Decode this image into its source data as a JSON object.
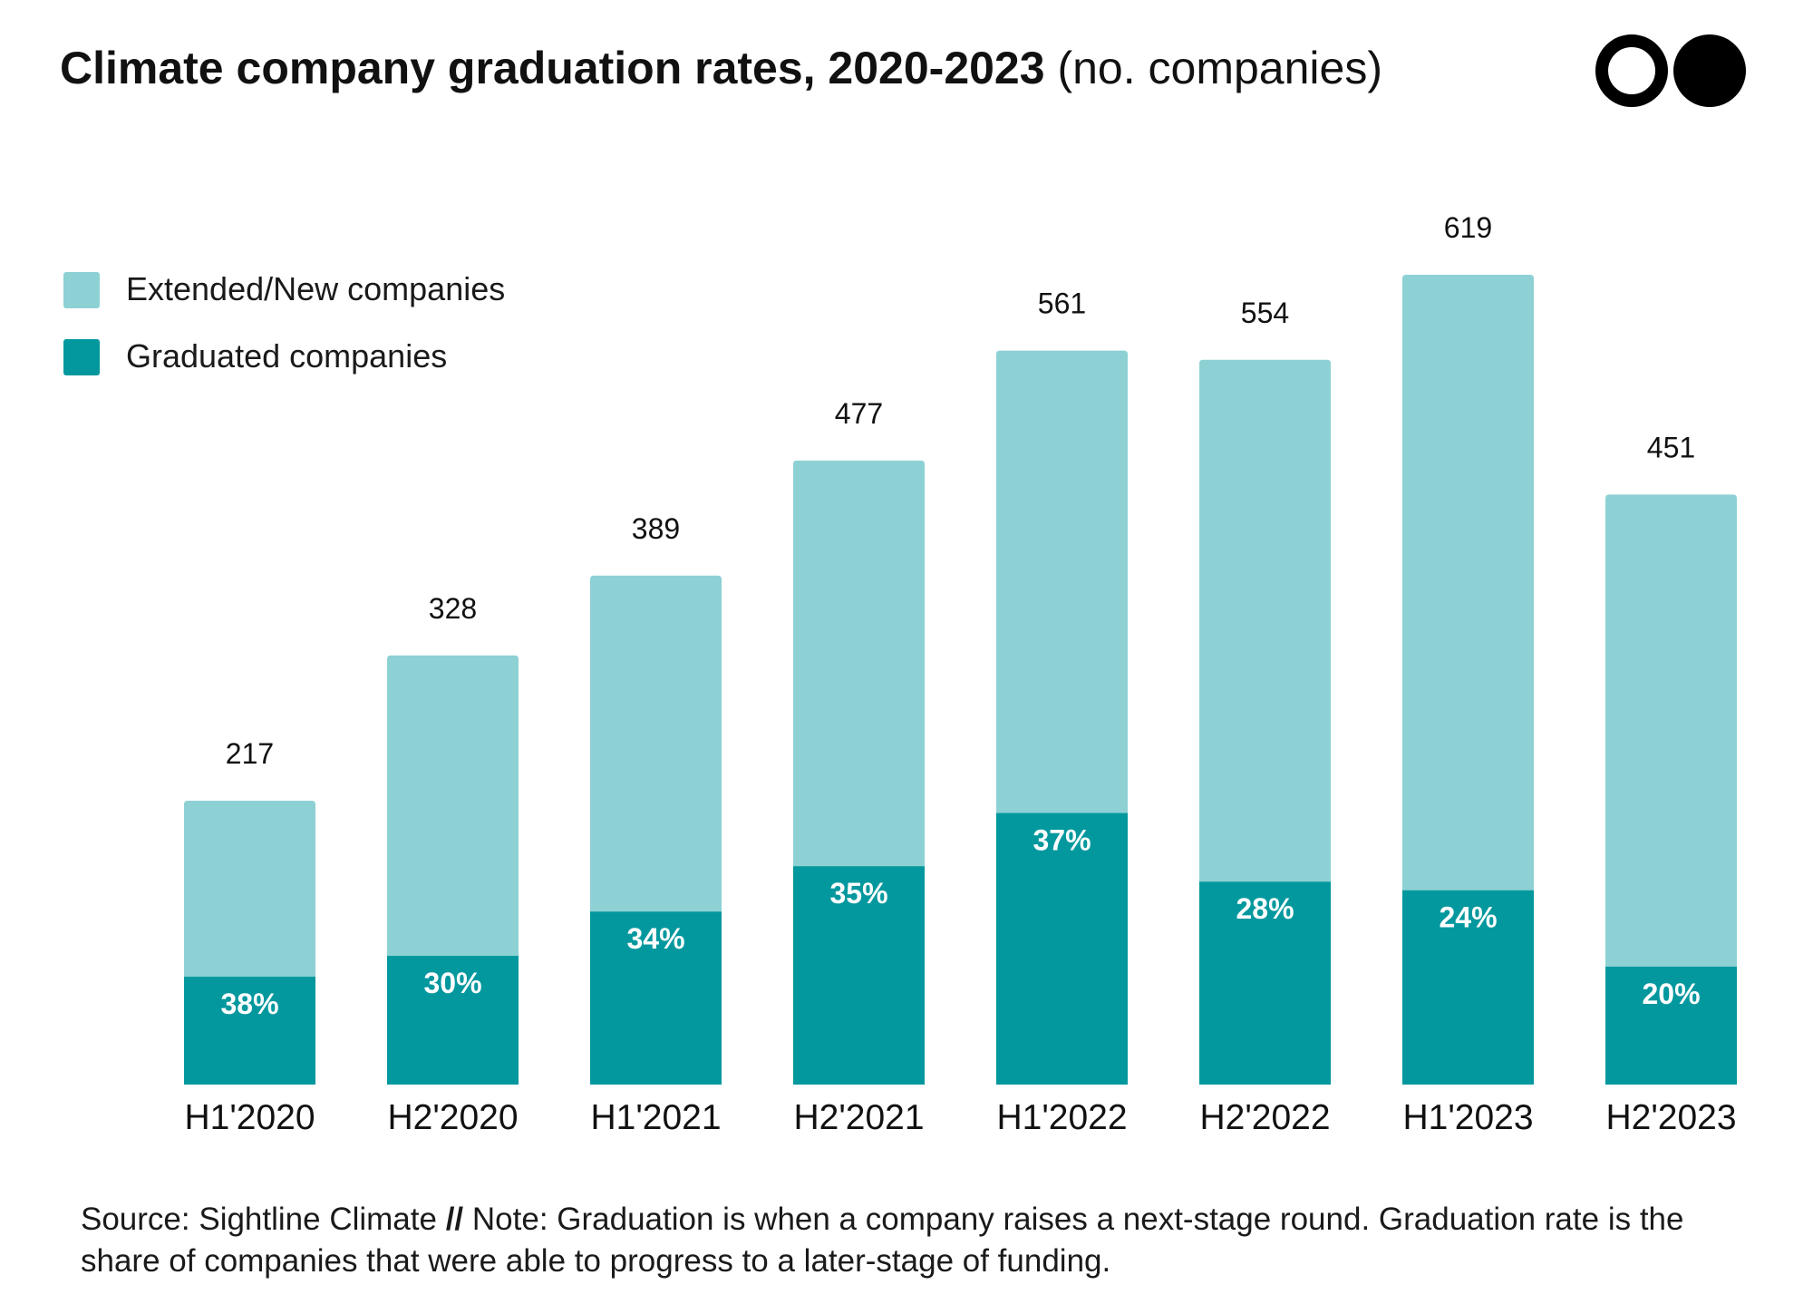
{
  "header": {
    "title_bold": "Climate company graduation rates, 2020-2023",
    "title_unit": "(no. companies)"
  },
  "logo": {
    "icon": "sightline-two-circles-logo"
  },
  "legend": {
    "items": [
      {
        "label": "Extended/New companies",
        "color": "#8dd1d4"
      },
      {
        "label": "Graduated companies",
        "color": "#03989e"
      }
    ]
  },
  "chart_data": {
    "type": "bar",
    "stacked": true,
    "categories": [
      "H1'2020",
      "H2'2020",
      "H1'2021",
      "H2'2021",
      "H1'2022",
      "H2'2022",
      "H1'2023",
      "H2'2023"
    ],
    "totals": [
      217,
      328,
      389,
      477,
      561,
      554,
      619,
      451
    ],
    "total_labels": [
      "217",
      "328",
      "389",
      "477",
      "561",
      "554",
      "619",
      "451"
    ],
    "graduation_rates": [
      38,
      30,
      34,
      35,
      37,
      28,
      24,
      20
    ],
    "rate_labels": [
      "38%",
      "30%",
      "34%",
      "35%",
      "37%",
      "28%",
      "24%",
      "20%"
    ],
    "series": [
      {
        "name": "Graduated companies",
        "values": [
          82,
          98,
          132,
          167,
          208,
          155,
          149,
          90
        ]
      },
      {
        "name": "Extended/New companies",
        "values": [
          135,
          230,
          257,
          310,
          353,
          399,
          470,
          361
        ]
      }
    ],
    "ylim": [
      0,
      619
    ],
    "grid": false,
    "legend_position": "top-left",
    "colors": {
      "graduated": "#03989e",
      "extended": "#8dd1d4"
    }
  },
  "footer": {
    "source": "Source: Sightline Climate",
    "separator": "//",
    "note": "Note: Graduation is when a company raises a next-stage round. Graduation rate is the share of companies that were able to progress to a later-stage of funding."
  }
}
